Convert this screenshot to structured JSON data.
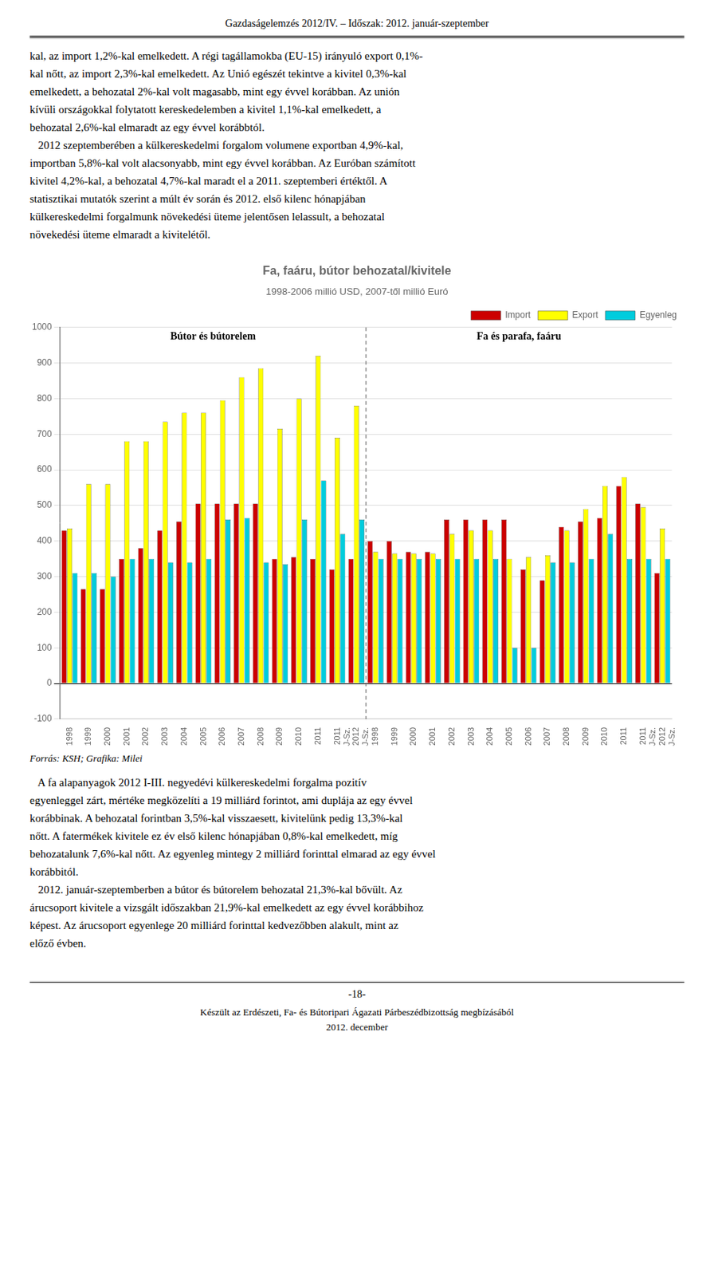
{
  "header": "Gazdaságelemzés 2012/IV. – Időszak: 2012. január-szeptember",
  "text_above": [
    "kal, az import 1,2%-kal emelkedett. A régi tagállamokba (EU-15) irányuló export 0,1%-",
    "kal nőtt, az import 2,3%-kal emelkedett. Az Unió egészét tekintve a kivitel 0,3%-kal",
    "emelkedett, a behozatal 2%-kal volt magasabb, mint egy évvel korábban. Az unión",
    "kívüli országokkal folytatott kereskedelemben a kivitel 1,1%-kal emelkedett, a",
    "behozatal 2,6%-kal elmaradt az egy évvel korábbtól.",
    "   2012 szeptemberében a külkereskedelmi forgalom volumene exportban 4,9%-kal,",
    "importban 5,8%-kal volt alacsonyabb, mint egy évvel korábban. Az Euróban számított",
    "kivitel 4,2%-kal, a behozatal 4,7%-kal maradt el a 2011. szeptemberi értéktől. A",
    "statisztikai mutatók szerint a múlt év során és 2012. első kilenc hónapjában",
    "külkereskedelmi forgalmunk növekedési üteme jelentősen lelassult, a behozatal",
    "növekedési üteme elmaradt a kivitelétől."
  ],
  "chart_data": {
    "type": "bar",
    "title": "Fa, faáru, bútor behozatal/kivitele",
    "subtitle": "1998-2006 millió USD, 2007-től millió Euró",
    "annotations": [
      "Bútor és bútorelem",
      "Fa és parafa, faáru"
    ],
    "categories": [
      "1998",
      "1999",
      "2000",
      "2001",
      "2002",
      "2003",
      "2004",
      "2005",
      "2006",
      "2007",
      "2008",
      "2009",
      "2010",
      "2011",
      "2011\nJ-Sz.",
      "2012\nJ-Sz.",
      "1998",
      "1999",
      "2000",
      "2001",
      "2002",
      "2003",
      "2004",
      "2005",
      "2006",
      "2007",
      "2008",
      "2009",
      "2010",
      "2011",
      "2011\nJ-Sz.",
      "2012\nJ-Sz."
    ],
    "series": [
      {
        "name": "Import",
        "color": "#cc0000",
        "values": [
          430,
          265,
          265,
          350,
          380,
          430,
          455,
          505,
          505,
          505,
          505,
          350,
          355,
          350,
          320,
          350,
          400,
          400,
          370,
          370,
          460,
          460,
          460,
          460,
          320,
          290,
          440,
          455,
          465,
          555,
          505,
          310
        ]
      },
      {
        "name": "Export",
        "color": "#ffff00",
        "values": [
          435,
          560,
          560,
          680,
          680,
          735,
          760,
          760,
          795,
          860,
          885,
          715,
          800,
          920,
          690,
          780,
          370,
          365,
          365,
          365,
          420,
          430,
          430,
          350,
          355,
          360,
          430,
          490,
          555,
          580,
          495,
          435
        ]
      },
      {
        "name": "Egyenleg",
        "color": "#00ccdd",
        "values": [
          310,
          310,
          300,
          350,
          350,
          340,
          340,
          350,
          460,
          465,
          340,
          335,
          460,
          570,
          420,
          460,
          350,
          350,
          350,
          350,
          350,
          350,
          350,
          100,
          100,
          340,
          340,
          350,
          420,
          350,
          350,
          350
        ]
      }
    ],
    "ylim": [
      -100,
      1000
    ],
    "yticks": [
      -100,
      0,
      100,
      200,
      300,
      400,
      500,
      600,
      700,
      800,
      900,
      1000
    ],
    "grid": true,
    "legend": "top"
  },
  "source": "Forrás: KSH; Grafika: Milei",
  "text_below": [
    "   A fa alapanyagok 2012 I-III. negyedévi külkereskedelmi forgalma pozitív",
    "egyenleggel zárt, mértéke megközelíti a 19 milliárd forintot, ami duplája az egy évvel",
    "korábbinak. A behozatal forintban 3,5%-kal visszaesett, kivitelünk pedig 13,3%-kal",
    "nőtt. A fatermékek kivitele ez év első kilenc hónapjában 0,8%-kal emelkedett, míg",
    "behozatalunk 7,6%-kal nőtt. Az egyenleg mintegy 2 milliárd forinttal elmarad az egy évvel",
    "korábbitól.",
    "   2012. január-szeptemberben a bútor és bútorelem behozatal 21,3%-kal bővült. Az",
    "árucsoport kivitele a vizsgált időszakban 21,9%-kal emelkedett az egy évvel korábbihoz",
    "képest. Az árucsoport egyenlege 20 milliárd forinttal kedvezőbben alakult, mint az",
    "előző évben."
  ],
  "page_number": "-18-",
  "footer": [
    "Készült az Erdészeti, Fa- és Bútoripari Ágazati Párbeszédbizottság megbízásából",
    "2012. december"
  ]
}
